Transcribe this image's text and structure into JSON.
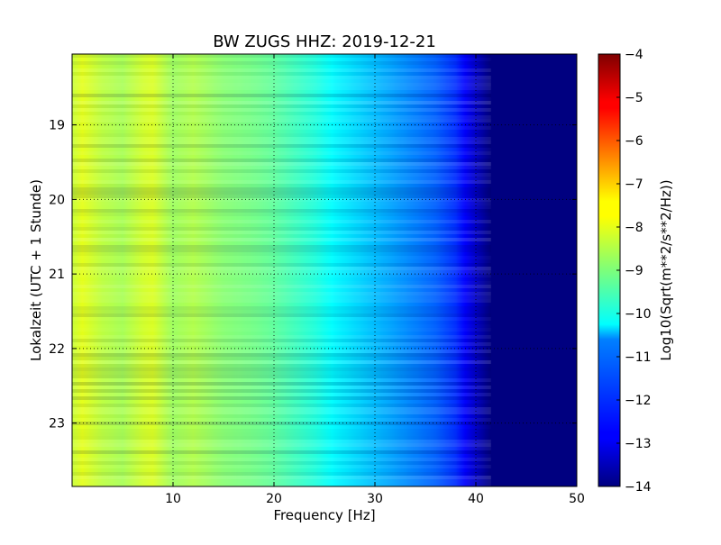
{
  "chart_data": {
    "type": "heatmap",
    "title": "BW ZUGS HHZ: 2019-12-21",
    "xlabel": "Frequency [Hz]",
    "ylabel": "Lokalzeit (UTC + 1 Stunde)",
    "colorbar_label": "Log10(Sqrt(m**2/s**2/Hz))",
    "xlim": [
      0,
      50
    ],
    "ylim": [
      18.05,
      23.85
    ],
    "y_inverted": true,
    "color_limits": [
      -14,
      -4
    ],
    "colormap": "jet",
    "x_ticks": [
      10,
      20,
      30,
      40,
      50
    ],
    "x_tick_labels": [
      "10",
      "20",
      "30",
      "40",
      "50"
    ],
    "y_ticks": [
      19,
      20,
      21,
      22,
      23
    ],
    "y_tick_labels": [
      "19",
      "20",
      "21",
      "22",
      "23"
    ],
    "colorbar_ticks": [
      -14,
      -13,
      -12,
      -11,
      -10,
      -9,
      -8,
      -7,
      -6,
      -5,
      -4
    ],
    "colorbar_tick_labels": [
      "−14",
      "−13",
      "−12",
      "−11",
      "−10",
      "−9",
      "−8",
      "−7",
      "−6",
      "−5",
      "−4"
    ],
    "grid": true,
    "frequency_profile": {
      "frequency_hz": [
        0,
        1,
        3,
        5,
        7,
        8,
        9,
        10,
        12,
        15,
        18,
        20,
        22,
        24,
        26,
        28,
        30,
        32,
        34,
        36,
        38,
        39,
        40,
        41,
        41.5,
        50
      ],
      "log10_amplitude": [
        -8.3,
        -8.0,
        -8.4,
        -8.6,
        -8.2,
        -8.1,
        -8.4,
        -8.7,
        -8.5,
        -8.9,
        -9.1,
        -9.3,
        -9.6,
        -9.9,
        -10.3,
        -10.6,
        -10.9,
        -11.2,
        -11.5,
        -11.8,
        -12.3,
        -12.8,
        -13.3,
        -13.8,
        -14.0,
        -14.0
      ]
    }
  }
}
